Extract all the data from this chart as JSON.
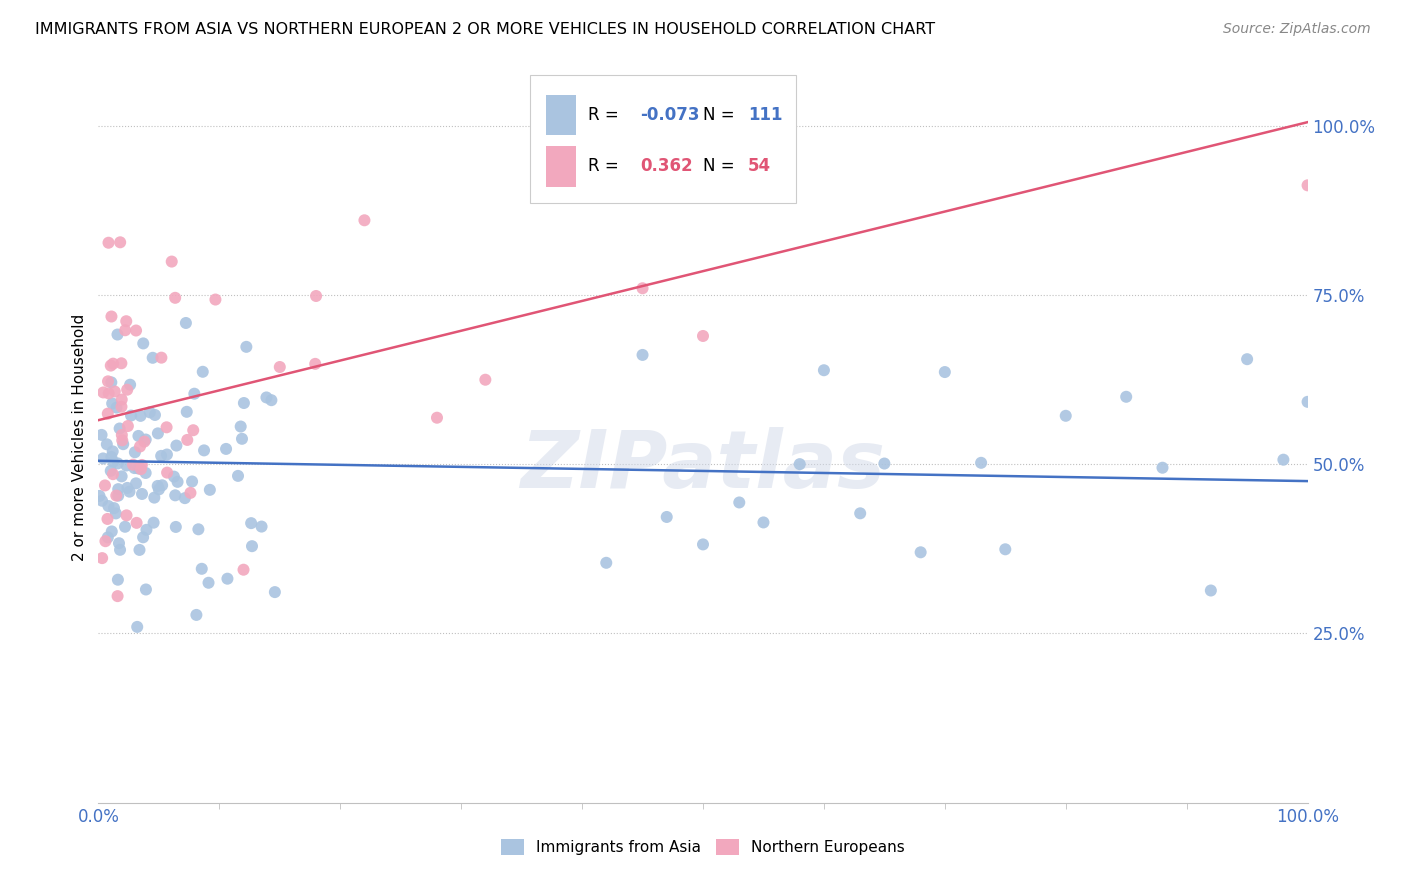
{
  "title": "IMMIGRANTS FROM ASIA VS NORTHERN EUROPEAN 2 OR MORE VEHICLES IN HOUSEHOLD CORRELATION CHART",
  "source": "Source: ZipAtlas.com",
  "ylabel": "2 or more Vehicles in Household",
  "xlim": [
    0.0,
    1.0
  ],
  "ylim": [
    0.0,
    1.08
  ],
  "color_asia": "#aac4e0",
  "color_northern": "#f2a8be",
  "line_color_asia": "#4472c4",
  "line_color_northern": "#e05575",
  "legend_r_asia": "-0.073",
  "legend_n_asia": "111",
  "legend_r_northern": "0.362",
  "legend_n_northern": "54",
  "watermark": "ZIPatlas",
  "asia_line_start_y": 0.505,
  "asia_line_end_y": 0.475,
  "northern_line_start_y": 0.565,
  "northern_line_end_y": 1.005
}
